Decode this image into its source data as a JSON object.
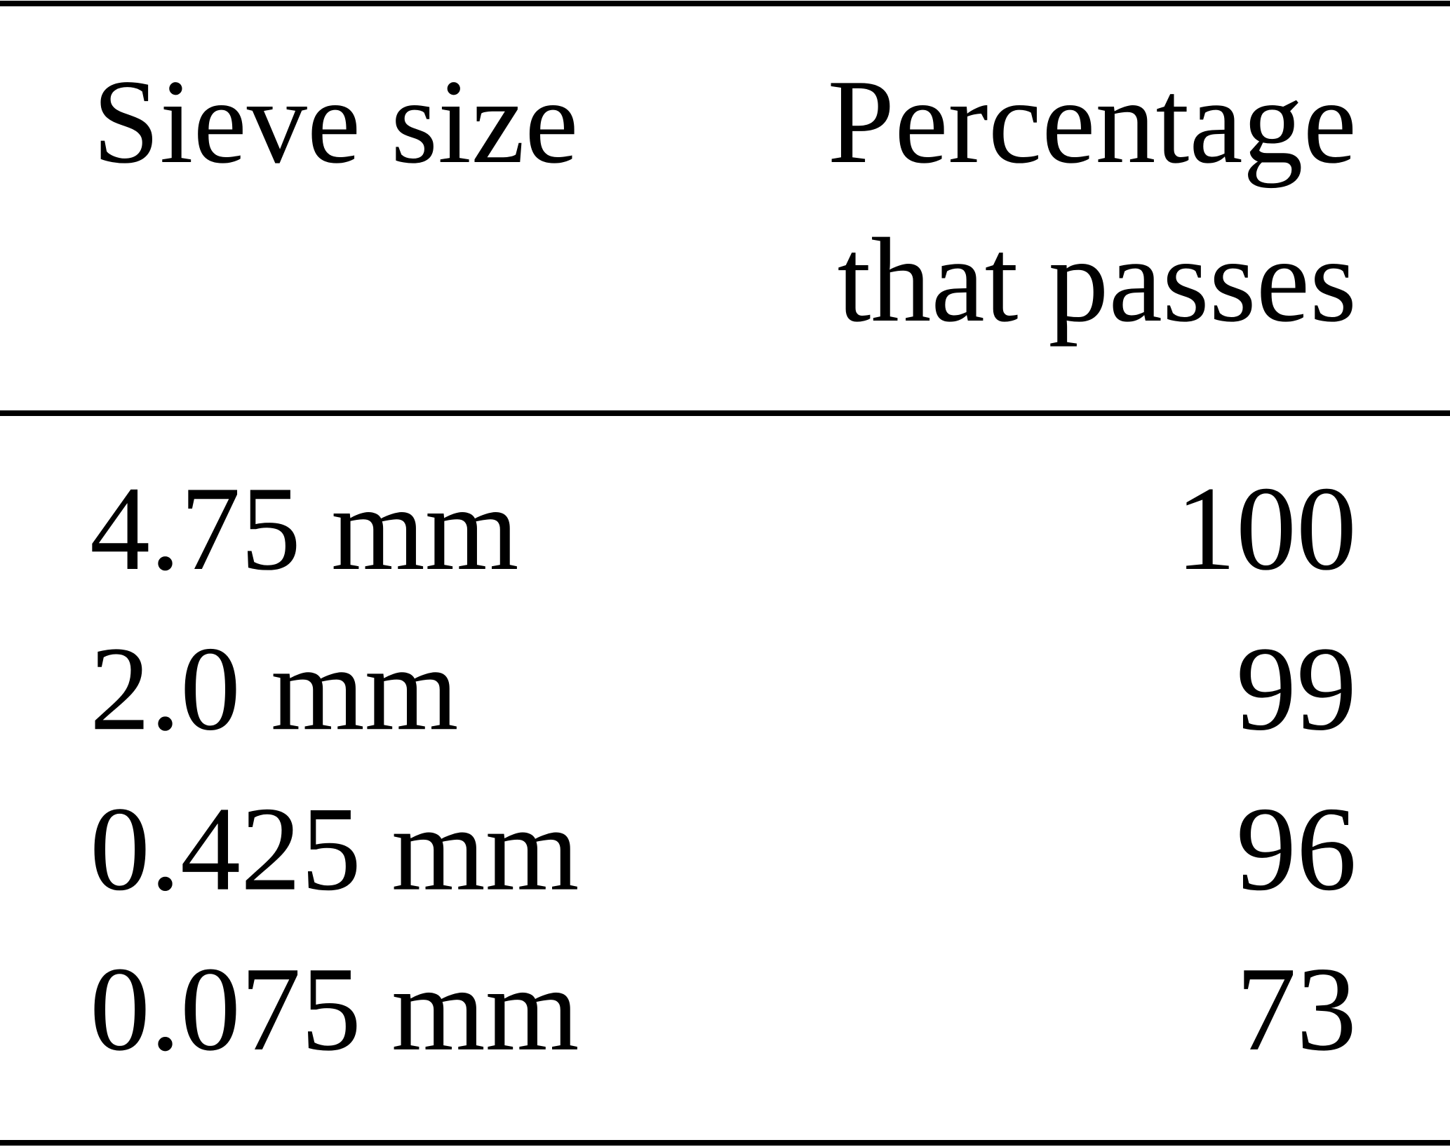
{
  "table": {
    "header": {
      "col1": "Sieve size",
      "col2": [
        "Percentage",
        "that passes"
      ]
    },
    "rows": [
      [
        "4.75 mm",
        100
      ],
      [
        "2.0 mm",
        99
      ],
      [
        "0.425 mm",
        96
      ],
      [
        "0.075 mm",
        73
      ]
    ]
  }
}
